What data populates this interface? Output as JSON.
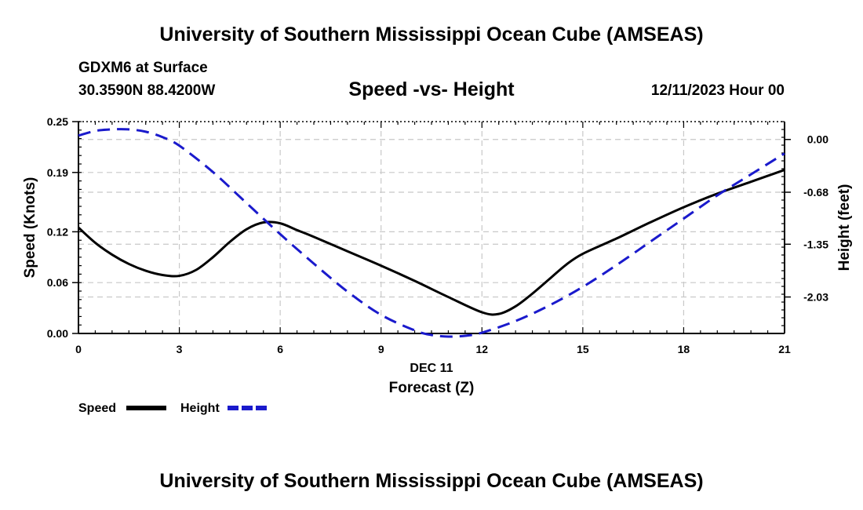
{
  "page": {
    "title_top": "University of Southern Mississippi Ocean Cube (AMSEAS)",
    "station": "GDXM6 at Surface",
    "coords": "30.3590N  88.4200W",
    "subtitle": "Speed -vs- Height",
    "datetime": "12/11/2023 Hour 00",
    "title_bottom": "University of Southern Mississippi Ocean Cube (AMSEAS)"
  },
  "colors": {
    "speed": "#000000",
    "height": "#1a1acc",
    "grid": "#c8c8c8",
    "axis": "#000000"
  },
  "chart_data": {
    "type": "line",
    "title": "Speed -vs- Height",
    "xlabel": "Forecast (Z)",
    "xlabel_date": "DEC 11",
    "ylabel_left": "Speed (Knots)",
    "ylabel_right": "Height (feet)",
    "xlim": [
      0,
      21
    ],
    "x_ticks": [
      0,
      3,
      6,
      9,
      12,
      15,
      18,
      21
    ],
    "ylim_left": [
      0,
      0.25
    ],
    "y_ticks_left": [
      0.0,
      0.06,
      0.12,
      0.19,
      0.25
    ],
    "y_tick_labels_left": [
      "0.00",
      "0.06",
      "0.12",
      "0.19",
      "0.25"
    ],
    "ylim_right": [
      -2.5,
      0.23
    ],
    "y_ticks_right": [
      0.0,
      -0.68,
      -1.35,
      -2.03
    ],
    "y_tick_labels_right": [
      "0.00",
      "-0.68",
      "-1.35",
      "-2.03"
    ],
    "grid": true,
    "legend": [
      {
        "name": "Speed",
        "style": "solid"
      },
      {
        "name": "Height",
        "style": "dashed"
      }
    ],
    "series": [
      {
        "name": "Speed",
        "axis": "left",
        "x": [
          0,
          0.5,
          1,
          1.5,
          2,
          2.5,
          3,
          3.5,
          4,
          4.5,
          5,
          5.5,
          6,
          6.5,
          7,
          8,
          9,
          10,
          11,
          12,
          12.5,
          13,
          13.5,
          14,
          14.5,
          15,
          16,
          17,
          18,
          19,
          20,
          21
        ],
        "values": [
          0.125,
          0.107,
          0.093,
          0.082,
          0.074,
          0.069,
          0.068,
          0.075,
          0.09,
          0.108,
          0.123,
          0.131,
          0.13,
          0.122,
          0.114,
          0.097,
          0.08,
          0.062,
          0.043,
          0.025,
          0.023,
          0.032,
          0.047,
          0.064,
          0.081,
          0.094,
          0.112,
          0.131,
          0.149,
          0.165,
          0.179,
          0.193
        ]
      },
      {
        "name": "Height",
        "axis": "right",
        "x": [
          0,
          0.5,
          1,
          1.5,
          2,
          2.5,
          3,
          4,
          5,
          6,
          7,
          8,
          9,
          10,
          10.5,
          11,
          11.5,
          12,
          13,
          14,
          15,
          16,
          17,
          18,
          19,
          20,
          21
        ],
        "values": [
          0.05,
          0.11,
          0.13,
          0.13,
          0.1,
          0.03,
          -0.08,
          -0.42,
          -0.82,
          -1.22,
          -1.6,
          -1.96,
          -2.26,
          -2.46,
          -2.52,
          -2.54,
          -2.53,
          -2.49,
          -2.34,
          -2.14,
          -1.9,
          -1.62,
          -1.32,
          -1.02,
          -0.72,
          -0.45,
          -0.18
        ]
      }
    ]
  }
}
